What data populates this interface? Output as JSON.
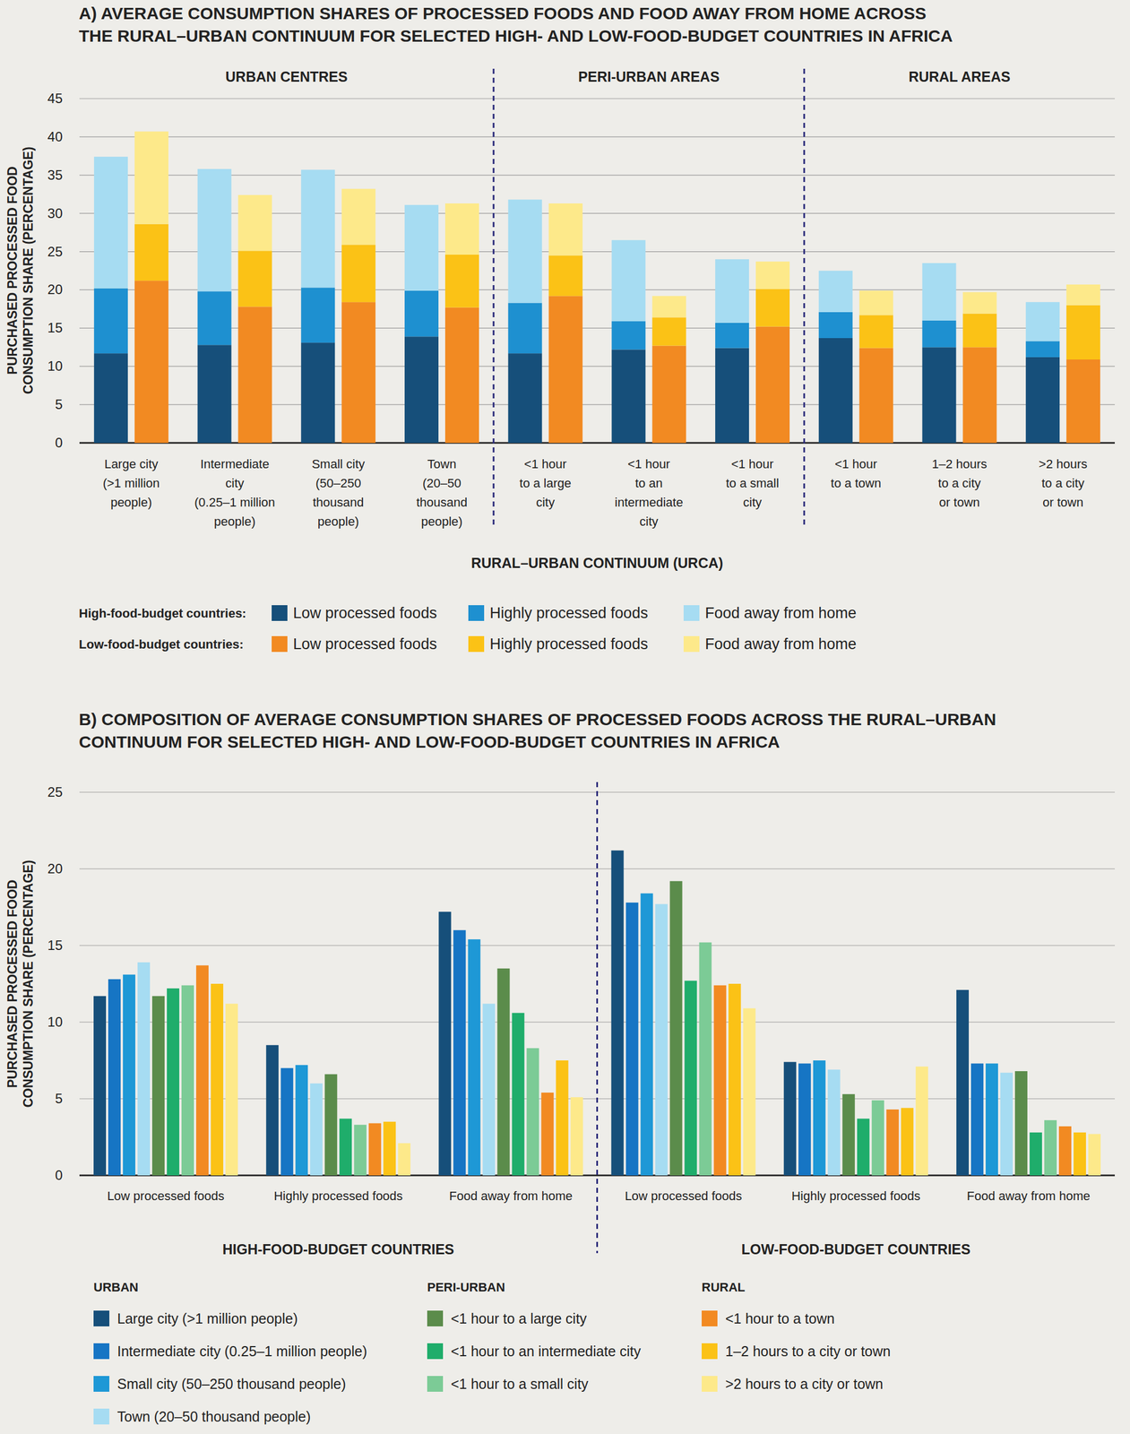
{
  "chart_data": [
    {
      "type": "bar",
      "stacked": true,
      "grid": true,
      "title": "A) AVERAGE CONSUMPTION SHARES OF PROCESSED FOODS AND FOOD AWAY FROM HOME ACROSS\nTHE RURAL–URBAN CONTINUUM FOR SELECTED HIGH- AND LOW-FOOD-BUDGET COUNTRIES IN AFRICA",
      "x_label": "RURAL–URBAN CONTINUUM (URCA)",
      "y_label": "PURCHASED PROCESSED FOOD\nCONSUMPTION SHARE (PERCENTAGE)",
      "sections": [
        {
          "label": "URBAN CENTRES",
          "categories": [
            "Large city\n(>1 million\npeople)",
            "Intermediate\ncity\n(0.25–1 million\npeople)",
            "Small city\n(50–250\nthousand\npeople)",
            "Town\n(20–50\nthousand\npeople)"
          ]
        },
        {
          "label": "PERI-URBAN AREAS",
          "categories": [
            "<1 hour\nto a large\ncity",
            "<1 hour\nto an\nintermediate\ncity",
            "<1 hour\nto a small\ncity"
          ]
        },
        {
          "label": "RURAL AREAS",
          "categories": [
            "<1 hour\nto a town",
            "1–2 hours\nto a city\nor town",
            ">2 hours\nto a city\nor town"
          ]
        }
      ],
      "groups": [
        {
          "label": "High-food-budget countries:",
          "series": [
            {
              "name": "Low processed foods",
              "color": "#164f7a",
              "values": [
                11.7,
                12.8,
                13.1,
                13.9,
                11.7,
                12.2,
                12.4,
                13.7,
                12.5,
                11.2
              ]
            },
            {
              "name": "Highly processed foods",
              "color": "#1e90d0",
              "values": [
                8.5,
                7.0,
                7.2,
                6.0,
                6.6,
                3.7,
                3.3,
                3.4,
                3.5,
                2.1
              ]
            },
            {
              "name": "Food away from home",
              "color": "#a6dcf2",
              "values": [
                17.2,
                16.0,
                15.4,
                11.2,
                13.5,
                10.6,
                8.3,
                5.4,
                7.5,
                5.1
              ]
            }
          ]
        },
        {
          "label": "Low-food-budget countries:",
          "series": [
            {
              "name": "Low processed foods",
              "color": "#f28a22",
              "values": [
                21.2,
                17.8,
                18.4,
                17.7,
                19.2,
                12.7,
                15.2,
                12.4,
                12.5,
                10.9
              ]
            },
            {
              "name": "Highly processed foods",
              "color": "#fbc216",
              "values": [
                7.4,
                7.3,
                7.5,
                6.9,
                5.3,
                3.7,
                4.9,
                4.3,
                4.4,
                7.1
              ]
            },
            {
              "name": "Food away from home",
              "color": "#fde98a",
              "values": [
                12.1,
                7.3,
                7.3,
                6.7,
                6.8,
                2.8,
                3.6,
                3.2,
                2.8,
                2.7
              ]
            }
          ]
        }
      ],
      "ylim": [
        0,
        45
      ],
      "yticks": [
        0,
        5,
        10,
        15,
        20,
        25,
        30,
        35,
        40,
        45
      ]
    },
    {
      "type": "bar",
      "grid": true,
      "title": "B) COMPOSITION OF AVERAGE CONSUMPTION SHARES OF PROCESSED FOODS ACROSS THE RURAL–URBAN\nCONTINUUM FOR SELECTED HIGH- AND LOW-FOOD-BUDGET COUNTRIES IN AFRICA",
      "y_label": "PURCHASED PROCESSED FOOD\nCONSUMPTION SHARE (PERCENTAGE)",
      "groups": [
        {
          "label": "HIGH-FOOD-BUDGET COUNTRIES",
          "categories": [
            "Low processed foods",
            "Highly processed foods",
            "Food away from home"
          ]
        },
        {
          "label": "LOW-FOOD-BUDGET COUNTRIES",
          "categories": [
            "Low processed foods",
            "Highly processed foods",
            "Food away from home"
          ]
        }
      ],
      "series_groups": [
        {
          "label": "URBAN",
          "series": [
            {
              "name": "Large city (>1 million people)",
              "color": "#164f7a",
              "values": [
                11.7,
                8.5,
                17.2,
                21.2,
                7.4,
                12.1
              ]
            },
            {
              "name": "Intermediate city (0.25–1 million people)",
              "color": "#1675c4",
              "values": [
                12.8,
                7.0,
                16.0,
                17.8,
                7.3,
                7.3
              ]
            },
            {
              "name": "Small city (50–250 thousand people)",
              "color": "#1e98d6",
              "values": [
                13.1,
                7.2,
                15.4,
                18.4,
                7.5,
                7.3
              ]
            },
            {
              "name": "Town (20–50 thousand people)",
              "color": "#a6dcf2",
              "values": [
                13.9,
                6.0,
                11.2,
                17.7,
                6.9,
                6.7
              ]
            }
          ]
        },
        {
          "label": "PERI-URBAN",
          "series": [
            {
              "name": "<1 hour to a large city",
              "color": "#5b8c4b",
              "values": [
                11.7,
                6.6,
                13.5,
                19.2,
                5.3,
                6.8
              ]
            },
            {
              "name": "<1 hour to an intermediate city",
              "color": "#1fad6b",
              "values": [
                12.2,
                3.7,
                10.6,
                12.7,
                3.7,
                2.8
              ]
            },
            {
              "name": "<1 hour to a small city",
              "color": "#7ccb96",
              "values": [
                12.4,
                3.3,
                8.3,
                15.2,
                4.9,
                3.6
              ]
            }
          ]
        },
        {
          "label": "RURAL",
          "series": [
            {
              "name": "<1 hour to a town",
              "color": "#f28a22",
              "values": [
                13.7,
                3.4,
                5.4,
                12.4,
                4.3,
                3.2
              ]
            },
            {
              "name": "1–2 hours to a city or town",
              "color": "#fbc216",
              "values": [
                12.5,
                3.5,
                7.5,
                12.5,
                4.4,
                2.8
              ]
            },
            {
              "name": ">2 hours to a city or town",
              "color": "#fde98a",
              "values": [
                11.2,
                2.1,
                5.1,
                10.9,
                7.1,
                2.7
              ]
            }
          ]
        }
      ],
      "ylim": [
        0,
        25
      ],
      "yticks": [
        0,
        5,
        10,
        15,
        20,
        25
      ]
    }
  ]
}
